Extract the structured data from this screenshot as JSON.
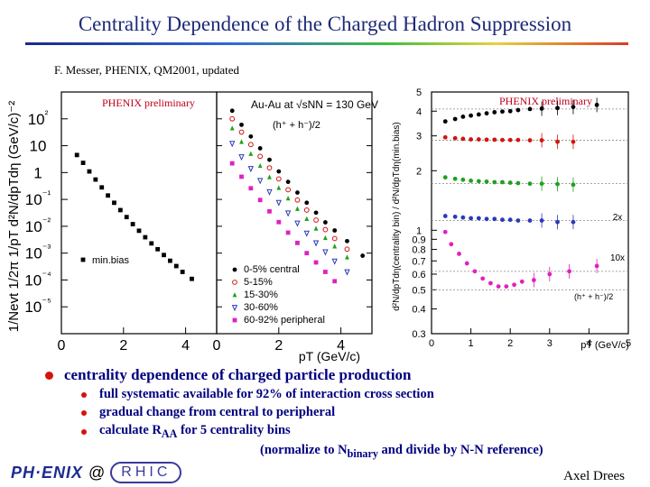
{
  "slide": {
    "title": "Centrality Dependence of the Charged Hadron Suppression",
    "credit": "F. Messer, PHENIX, QM2001, updated",
    "author": "Axel Drees",
    "logo_text": "PH·ENIX",
    "logo_at": "@",
    "logo_rhic": "RHIC",
    "bullets": {
      "main": "centrality dependence of charged particle production",
      "sub": [
        "full systematic available for 92% of interaction cross section",
        "gradual change from central to peripheral",
        "calculate R",
        "AA",
        " for 5 centrality bins"
      ],
      "line2a": "(normalize to N",
      "line2sub": "binary",
      "line2b": " and divide by N-N reference)"
    }
  },
  "chart_data": [
    {
      "type": "scatter",
      "ylabel": "1/Nevt 1/2π 1/pT d²N/dpTdη (GeV/c)⁻²",
      "annotation": "PHENIX preliminary",
      "xlim": [
        0,
        5
      ],
      "ylog": true,
      "ylim": [
        1e-06,
        1000
      ],
      "x_ticks": [
        "0",
        "2",
        "4"
      ],
      "y_ticks": [
        "10²",
        "10",
        "1",
        "10⁻¹",
        "10⁻²",
        "10⁻³",
        "10⁻⁴",
        "10⁻⁵"
      ],
      "legend": "min.bias",
      "series": [
        {
          "name": "min.bias",
          "color": "#000000",
          "x": [
            0.5,
            0.7,
            0.9,
            1.1,
            1.3,
            1.5,
            1.7,
            1.9,
            2.1,
            2.3,
            2.5,
            2.7,
            2.9,
            3.1,
            3.3,
            3.5,
            3.7,
            3.9,
            4.2
          ],
          "y": [
            4.5,
            2.3,
            1.1,
            0.55,
            0.28,
            0.14,
            0.075,
            0.04,
            0.022,
            0.012,
            0.0068,
            0.0039,
            0.0023,
            0.0014,
            0.00085,
            0.00052,
            0.00033,
            0.0002,
            0.00011
          ]
        }
      ]
    },
    {
      "type": "scatter",
      "legend_title": "Au-Au at √sNN = 130 GeV",
      "annotation": "(h⁺ + h⁻)/2",
      "xlabel": "pT (GeV/c)",
      "xlim": [
        0,
        5
      ],
      "ylog": true,
      "ylim": [
        1e-06,
        1000
      ],
      "x_ticks": [
        "0",
        "2",
        "4"
      ],
      "series": [
        {
          "name": "0-5% central",
          "color": "#000000",
          "marker": "dot",
          "x": [
            0.5,
            0.8,
            1.1,
            1.4,
            1.7,
            2.0,
            2.3,
            2.6,
            2.9,
            3.2,
            3.5,
            3.8,
            4.2,
            4.7
          ],
          "y": [
            200,
            60,
            22,
            8,
            3,
            1.1,
            0.45,
            0.18,
            0.075,
            0.032,
            0.014,
            0.007,
            0.0028,
            0.0008
          ]
        },
        {
          "name": "5-15%",
          "color": "#d2140f",
          "marker": "circle",
          "x": [
            0.5,
            0.8,
            1.1,
            1.4,
            1.7,
            2.0,
            2.3,
            2.6,
            2.9,
            3.2,
            3.5,
            3.8,
            4.2
          ],
          "y": [
            100,
            32,
            11,
            4,
            1.5,
            0.58,
            0.23,
            0.095,
            0.04,
            0.017,
            0.0075,
            0.0035,
            0.0014
          ]
        },
        {
          "name": "15-30%",
          "color": "#20a020",
          "marker": "triangle-up",
          "x": [
            0.5,
            0.8,
            1.1,
            1.4,
            1.7,
            2.0,
            2.3,
            2.6,
            2.9,
            3.2,
            3.5,
            3.8,
            4.2
          ],
          "y": [
            45,
            14,
            5,
            1.8,
            0.68,
            0.27,
            0.11,
            0.045,
            0.019,
            0.0083,
            0.0037,
            0.0018,
            0.0007
          ]
        },
        {
          "name": "30-60%",
          "color": "#2a3ab8",
          "marker": "triangle-down",
          "x": [
            0.5,
            0.8,
            1.1,
            1.4,
            1.7,
            2.0,
            2.3,
            2.6,
            2.9,
            3.2,
            3.5,
            3.8,
            4.2
          ],
          "y": [
            12,
            3.8,
            1.4,
            0.5,
            0.19,
            0.076,
            0.031,
            0.013,
            0.0055,
            0.0024,
            0.0011,
            0.0005,
            0.0002
          ]
        },
        {
          "name": "60-92% peripheral",
          "color": "#e020c0",
          "marker": "square",
          "x": [
            0.5,
            0.8,
            1.1,
            1.4,
            1.7,
            2.0,
            2.3,
            2.6,
            2.9,
            3.2,
            3.5,
            3.8
          ],
          "y": [
            2.2,
            0.7,
            0.26,
            0.095,
            0.036,
            0.0143,
            0.0058,
            0.0024,
            0.001,
            0.00045,
            0.0002,
            9e-05
          ]
        }
      ]
    },
    {
      "type": "scatter",
      "ylabel": "d²N/dpTdη(centrality bin) / d²N/dpTdη(min.bias)",
      "xlabel": "pT (GeV/c)",
      "annotation": "PHENIX preliminary",
      "annotations_right": [
        "2x",
        "10x"
      ],
      "ratio_label": "(h⁺ + h⁻)/2",
      "xlim": [
        0,
        5
      ],
      "ylog": true,
      "ylim": [
        0.3,
        5
      ],
      "x_ticks": [
        "0",
        "1",
        "2",
        "3",
        "4",
        "5"
      ],
      "y_ticks": [
        "5",
        "4",
        "3",
        "2",
        "1",
        "0.9",
        "0.8",
        "0.7",
        "0.6",
        "0.5",
        "0.4",
        "0.3"
      ],
      "reference_lines": [
        4.1,
        2.85,
        1.72,
        1.12,
        0.62,
        0.5
      ],
      "series": [
        {
          "name": "0-5% central",
          "color": "#000000",
          "x": [
            0.35,
            0.6,
            0.8,
            1.0,
            1.2,
            1.4,
            1.6,
            1.8,
            2.0,
            2.2,
            2.5,
            2.8,
            3.2,
            3.6,
            4.2
          ],
          "y": [
            3.55,
            3.65,
            3.75,
            3.8,
            3.85,
            3.9,
            3.95,
            3.98,
            4.0,
            4.05,
            4.1,
            4.12,
            4.15,
            4.2,
            4.3
          ]
        },
        {
          "name": "5-15%",
          "color": "#d2140f",
          "x": [
            0.35,
            0.6,
            0.8,
            1.0,
            1.2,
            1.4,
            1.6,
            1.8,
            2.0,
            2.2,
            2.5,
            2.8,
            3.2,
            3.6
          ],
          "y": [
            2.95,
            2.92,
            2.9,
            2.88,
            2.88,
            2.87,
            2.87,
            2.86,
            2.86,
            2.86,
            2.85,
            2.85,
            2.8,
            2.8
          ]
        },
        {
          "name": "15-30%",
          "color": "#20a020",
          "x": [
            0.35,
            0.6,
            0.8,
            1.0,
            1.2,
            1.4,
            1.6,
            1.8,
            2.0,
            2.2,
            2.5,
            2.8,
            3.2,
            3.6
          ],
          "y": [
            1.85,
            1.82,
            1.8,
            1.78,
            1.77,
            1.76,
            1.75,
            1.75,
            1.74,
            1.73,
            1.72,
            1.72,
            1.71,
            1.7
          ]
        },
        {
          "name": "30-60%",
          "color": "#2a3ab8",
          "x": [
            0.35,
            0.6,
            0.8,
            1.0,
            1.2,
            1.4,
            1.6,
            1.8,
            2.0,
            2.2,
            2.5,
            2.8,
            3.2,
            3.6
          ],
          "y": [
            1.18,
            1.17,
            1.16,
            1.15,
            1.15,
            1.14,
            1.14,
            1.13,
            1.13,
            1.12,
            1.12,
            1.12,
            1.1,
            1.1
          ]
        },
        {
          "name": "60-92% peripheral",
          "color": "#e020c0",
          "x": [
            0.35,
            0.5,
            0.7,
            0.9,
            1.1,
            1.3,
            1.5,
            1.7,
            1.9,
            2.1,
            2.3,
            2.6,
            3.0,
            3.5,
            4.2
          ],
          "y": [
            0.98,
            0.85,
            0.76,
            0.68,
            0.62,
            0.57,
            0.54,
            0.52,
            0.52,
            0.53,
            0.55,
            0.56,
            0.6,
            0.62,
            0.66
          ]
        }
      ]
    }
  ]
}
